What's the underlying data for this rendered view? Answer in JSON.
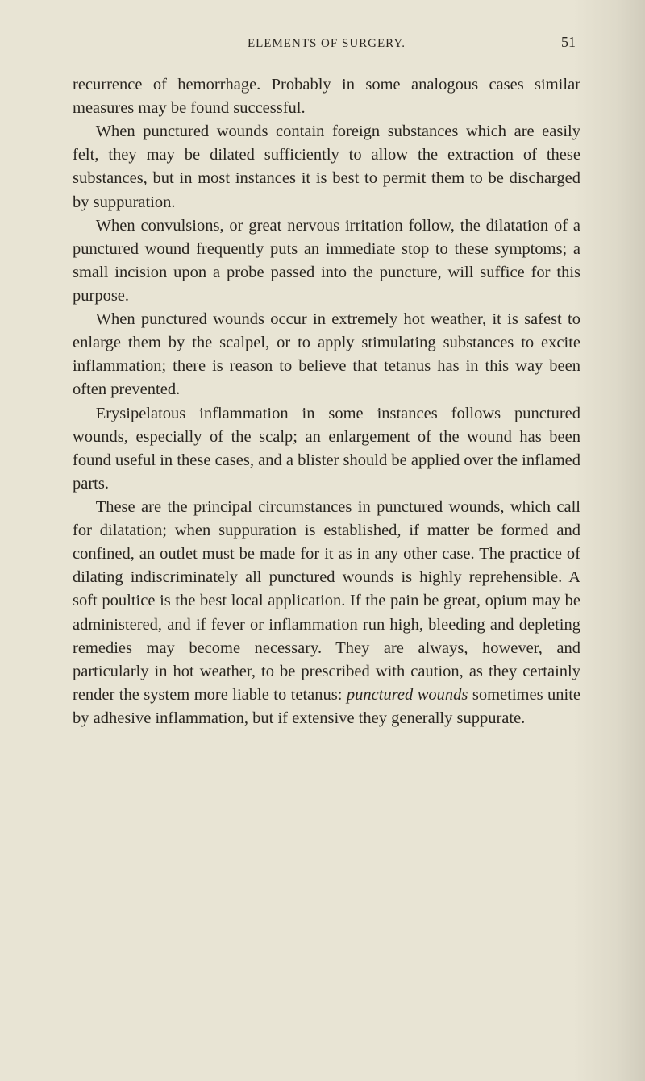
{
  "page": {
    "running_head": "ELEMENTS OF SURGERY.",
    "number": "51",
    "typography": {
      "body_fontsize_pt": 20.5,
      "line_height": 1.42,
      "header_fontsize_pt": 15,
      "pagenum_fontsize_pt": 18,
      "text_color": "#2a2620",
      "background_color": "#e8e4d4",
      "font_family": "Georgia, 'Times New Roman', serif"
    }
  },
  "paragraphs": [
    "recurrence of hemorrhage. Probably in some analogous cases similar measures may be found successful.",
    "When punctured wounds contain foreign substances which are easily felt, they may be dilated sufficiently to allow the extraction of these substances, but in most instances it is best to permit them to be discharged by suppuration.",
    "When convulsions, or great nervous irritation follow, the dilatation of a punctured wound frequently puts an immediate stop to these symptoms; a small incision upon a probe passed into the puncture, will suffice for this purpose.",
    "When punctured wounds occur in extremely hot weather, it is safest to enlarge them by the scalpel, or to apply stimulating substances to excite inflammation; there is reason to believe that tetanus has in this way been often prevented.",
    "Erysipelatous inflammation in some instances follows punctured wounds, especially of the scalp; an enlargement of the wound has been found useful in these cases, and a blister should be applied over the inflamed parts.",
    "These are the principal circumstances in punctured wounds, which call for dilatation; when suppuration is established, if matter be formed and confined, an outlet must be made for it as in any other case. The practice of dilating indiscriminately all punctured wounds is highly reprehensible. A soft poultice is the best local application. If the pain be great, opium may be administered, and if fever or inflammation run high, bleeding and depleting remedies may become necessary. They are always, however, and particularly in hot weather, to be prescribed with caution, as they certainly render the system more liable to tetanus: punctured wounds sometimes unite by adhesive inflammation, but if extensive they generally suppurate."
  ],
  "italic_phrase": "punctured wounds"
}
